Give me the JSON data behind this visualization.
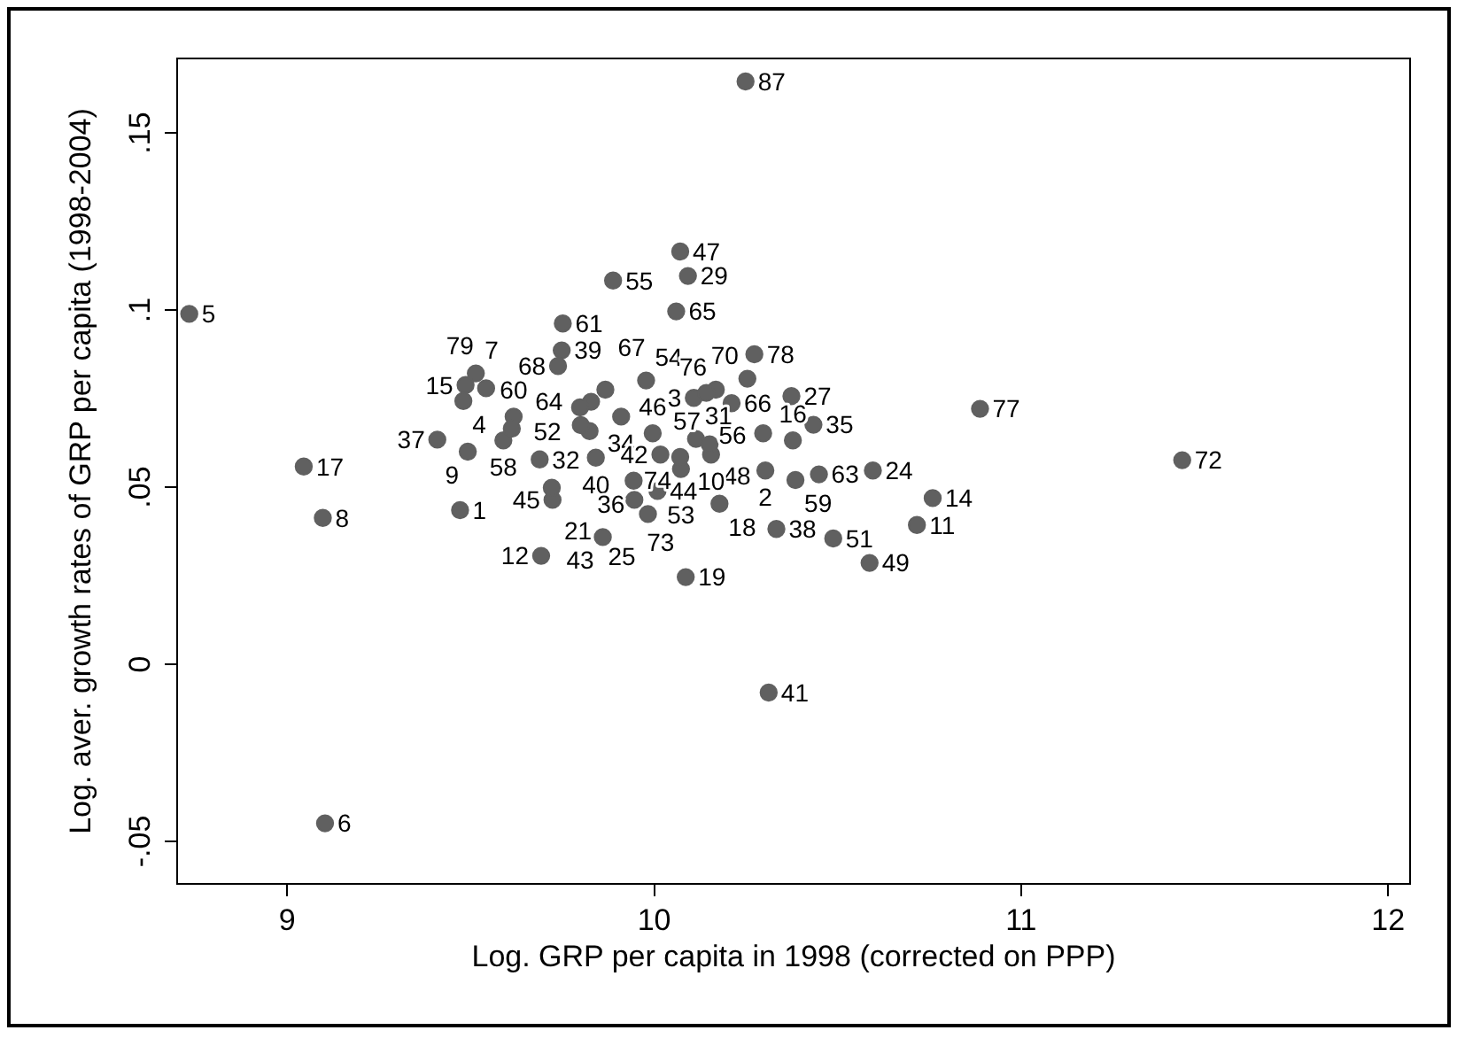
{
  "chart_data": {
    "type": "scatter",
    "xlabel": "Log. GRP per capita in 1998 (corrected on PPP)",
    "ylabel": "Log. aver. growth rates of GRP per capita (1998-2004)",
    "xlim": [
      8.7,
      12.06
    ],
    "ylim": [
      -0.062,
      0.171
    ],
    "xticks": [
      9,
      10,
      11,
      12
    ],
    "yticks": [
      {
        "value": -0.05,
        "label": "-.05"
      },
      {
        "value": 0,
        "label": "0"
      },
      {
        "value": 0.05,
        "label": ".05"
      },
      {
        "value": 0.1,
        "label": ".1"
      },
      {
        "value": 0.15,
        "label": ".15"
      }
    ],
    "grid": false,
    "legend": false,
    "marker": "circle",
    "series": [
      {
        "color": "#606060",
        "x": [
          10.249,
          10.071,
          10.092,
          9.888,
          10.06,
          8.733,
          9.751,
          9.748,
          10.273,
          9.738,
          9.514,
          10.254,
          9.978,
          9.486,
          9.542,
          9.867,
          10.374,
          9.48,
          10.168,
          10.108,
          10.142,
          10.211,
          10.888,
          9.828,
          9.798,
          10.434,
          9.617,
          9.91,
          10.297,
          9.409,
          9.589,
          10.378,
          9.492,
          9.045,
          11.439,
          9.688,
          9.841,
          10.303,
          10.596,
          10.449,
          10.385,
          10.073,
          10.155,
          10.759,
          9.944,
          9.723,
          9.721,
          10.009,
          9.946,
          10.178,
          9.471,
          9.097,
          9.983,
          10.716,
          10.333,
          10.488,
          9.86,
          9.692,
          10.587,
          10.086,
          10.312,
          9.103,
          9.824,
          9.996,
          10.114,
          10.151,
          10.017,
          10.071,
          9.612,
          9.8
        ],
        "values": [
          0.1645,
          0.1165,
          0.1096,
          0.1083,
          0.0996,
          0.0989,
          0.0962,
          0.0886,
          0.0875,
          0.0842,
          0.0821,
          0.0806,
          0.0801,
          0.0788,
          0.0779,
          0.0775,
          0.0757,
          0.0743,
          0.0775,
          0.0752,
          0.0766,
          0.0737,
          0.0721,
          0.0741,
          0.0725,
          0.0676,
          0.0699,
          0.0699,
          0.0652,
          0.0634,
          0.0632,
          0.0632,
          0.06,
          0.0558,
          0.0576,
          0.0578,
          0.0583,
          0.0547,
          0.0547,
          0.0536,
          0.052,
          0.0551,
          0.0592,
          0.0469,
          0.0518,
          0.0464,
          0.0498,
          0.0489,
          0.0464,
          0.0453,
          0.0435,
          0.0413,
          0.0424,
          0.0393,
          0.0382,
          0.0355,
          0.0359,
          0.0306,
          0.0286,
          0.0246,
          -0.008,
          -0.0449,
          0.0658,
          0.0652,
          0.0636,
          0.0621,
          0.0592,
          0.0585,
          0.0665,
          0.0675
        ]
      }
    ],
    "annotations": [
      {
        "text": "87",
        "x": 10.249,
        "y": 0.1645
      },
      {
        "text": "47",
        "x": 10.071,
        "y": 0.1165
      },
      {
        "text": "29",
        "x": 10.092,
        "y": 0.1096
      },
      {
        "text": "55",
        "x": 9.888,
        "y": 0.1083
      },
      {
        "text": "65",
        "x": 10.06,
        "y": 0.0996
      },
      {
        "text": "5",
        "x": 8.733,
        "y": 0.0989
      },
      {
        "text": "61",
        "x": 9.751,
        "y": 0.0962
      },
      {
        "text": "39",
        "x": 9.748,
        "y": 0.0886
      },
      {
        "text": "78",
        "x": 10.273,
        "y": 0.0875
      },
      {
        "text": "68",
        "x": 9.738,
        "y": 0.0842
      },
      {
        "text": "7",
        "x": 9.514,
        "y": 0.0821
      },
      {
        "text": "70",
        "x": 10.254,
        "y": 0.0806
      },
      {
        "text": "54",
        "x": 9.978,
        "y": 0.0801
      },
      {
        "text": "15",
        "x": 9.486,
        "y": 0.0788
      },
      {
        "text": "79",
        "x": 9.542,
        "y": 0.0779
      },
      {
        "text": "67",
        "x": 9.867,
        "y": 0.0775
      },
      {
        "text": "27",
        "x": 10.374,
        "y": 0.0757
      },
      {
        "text": "4",
        "x": 9.48,
        "y": 0.0743
      },
      {
        "text": "76",
        "x": 10.168,
        "y": 0.0775
      },
      {
        "text": "3",
        "x": 10.108,
        "y": 0.0752
      },
      {
        "text": "56",
        "x": 10.142,
        "y": 0.0766
      },
      {
        "text": "66",
        "x": 10.211,
        "y": 0.0737
      },
      {
        "text": "77",
        "x": 10.888,
        "y": 0.0721
      },
      {
        "text": "64",
        "x": 9.828,
        "y": 0.0741
      },
      {
        "text": "35",
        "x": 10.434,
        "y": 0.0676
      },
      {
        "text": "60",
        "x": 9.617,
        "y": 0.0699
      },
      {
        "text": "34",
        "x": 9.91,
        "y": 0.0699
      },
      {
        "text": "48",
        "x": 10.297,
        "y": 0.0652
      },
      {
        "text": "37",
        "x": 9.409,
        "y": 0.0634
      },
      {
        "text": "58",
        "x": 9.589,
        "y": 0.0632
      },
      {
        "text": "16",
        "x": 10.378,
        "y": 0.0632
      },
      {
        "text": "9",
        "x": 9.492,
        "y": 0.06
      },
      {
        "text": "17",
        "x": 9.045,
        "y": 0.0558
      },
      {
        "text": "72",
        "x": 11.439,
        "y": 0.0576
      },
      {
        "text": "32",
        "x": 9.688,
        "y": 0.0578
      },
      {
        "text": "40",
        "x": 9.841,
        "y": 0.0583
      },
      {
        "text": "2",
        "x": 10.303,
        "y": 0.0547
      },
      {
        "text": "24",
        "x": 10.596,
        "y": 0.0547
      },
      {
        "text": "63",
        "x": 10.449,
        "y": 0.0536
      },
      {
        "text": "59",
        "x": 10.385,
        "y": 0.052
      },
      {
        "text": "53",
        "x": 10.073,
        "y": 0.0551
      },
      {
        "text": "10",
        "x": 10.155,
        "y": 0.0592
      },
      {
        "text": "14",
        "x": 10.759,
        "y": 0.0469
      },
      {
        "text": "36",
        "x": 9.944,
        "y": 0.0518
      },
      {
        "text": "45",
        "x": 9.723,
        "y": 0.0464
      },
      {
        "text": "21",
        "x": 9.721,
        "y": 0.0498
      },
      {
        "text": "44",
        "x": 10.009,
        "y": 0.0489
      },
      {
        "text": "73",
        "x": 9.946,
        "y": 0.0464
      },
      {
        "text": "18",
        "x": 10.178,
        "y": 0.0453
      },
      {
        "text": "1",
        "x": 9.471,
        "y": 0.0435
      },
      {
        "text": "8",
        "x": 9.097,
        "y": 0.0413
      },
      {
        "text": "25",
        "x": 9.983,
        "y": 0.0424
      },
      {
        "text": "11",
        "x": 10.716,
        "y": 0.0393
      },
      {
        "text": "38",
        "x": 10.333,
        "y": 0.0382
      },
      {
        "text": "51",
        "x": 10.488,
        "y": 0.0355
      },
      {
        "text": "43",
        "x": 9.86,
        "y": 0.0359
      },
      {
        "text": "12",
        "x": 9.692,
        "y": 0.0306
      },
      {
        "text": "49",
        "x": 10.587,
        "y": 0.0286
      },
      {
        "text": "19",
        "x": 10.086,
        "y": 0.0246
      },
      {
        "text": "41",
        "x": 10.312,
        "y": -0.008
      },
      {
        "text": "6",
        "x": 9.103,
        "y": -0.0449
      },
      {
        "text": "52",
        "x": 9.824,
        "y": 0.0658
      },
      {
        "text": "46",
        "x": 9.996,
        "y": 0.0652
      },
      {
        "text": "31",
        "x": 10.114,
        "y": 0.0636
      },
      {
        "text": "57",
        "x": 10.151,
        "y": 0.0621
      },
      {
        "text": "42",
        "x": 10.017,
        "y": 0.0592
      },
      {
        "text": "74",
        "x": 10.071,
        "y": 0.0585
      }
    ]
  }
}
